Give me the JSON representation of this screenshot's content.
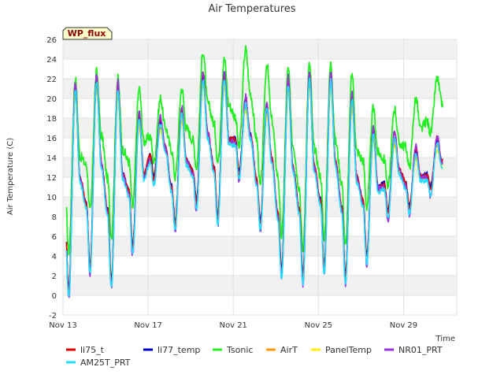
{
  "chart_data": {
    "type": "line",
    "title": "Air Temperatures",
    "xlabel": "Time",
    "ylabel": "Air Temperature (C)",
    "badge": "WP_flux",
    "ylim": [
      -2,
      26
    ],
    "yticks": [
      -2,
      0,
      2,
      4,
      6,
      8,
      10,
      12,
      14,
      16,
      18,
      20,
      22,
      24,
      26
    ],
    "x_range_days": [
      "2023-11-13",
      "2023-12-01"
    ],
    "xticks": [
      {
        "date": "2023-11-13",
        "label": "Nov 13"
      },
      {
        "date": "2023-11-17",
        "label": "Nov 17"
      },
      {
        "date": "2023-11-21",
        "label": "Nov 21"
      },
      {
        "date": "2023-11-25",
        "label": "Nov 25"
      },
      {
        "date": "2023-11-29",
        "label": "Nov 29"
      }
    ],
    "grid": true,
    "banded_background": true,
    "legend_position": "bottom",
    "series": [
      {
        "name": "li75_t",
        "color": "#dd0000"
      },
      {
        "name": "li77_temp",
        "color": "#0000cc"
      },
      {
        "name": "Tsonic",
        "color": "#22ee22"
      },
      {
        "name": "AirT",
        "color": "#ff9900"
      },
      {
        "name": "PanelTemp",
        "color": "#ffee00"
      },
      {
        "name": "NR01_PRT",
        "color": "#9933dd"
      },
      {
        "name": "AM25T_PRT",
        "color": "#22ddff"
      }
    ],
    "daily": [
      {
        "date": "2023-11-13",
        "min": 0.0,
        "max": 21.5,
        "tsonic_min": 4.5,
        "tsonic_max": 22.0
      },
      {
        "date": "2023-11-14",
        "min": 2.5,
        "max": 22.3,
        "tsonic_min": 8.5,
        "tsonic_max": 22.7
      },
      {
        "date": "2023-11-15",
        "min": 1.0,
        "max": 21.5,
        "tsonic_min": 6.0,
        "tsonic_max": 22.0
      },
      {
        "date": "2023-11-16",
        "min": 4.5,
        "max": 18.5,
        "tsonic_min": 9.0,
        "tsonic_max": 21.0
      },
      {
        "date": "2023-11-17",
        "min": 11.5,
        "max": 18.0,
        "tsonic_min": 13.5,
        "tsonic_max": 20.0
      },
      {
        "date": "2023-11-18",
        "min": 7.0,
        "max": 19.0,
        "tsonic_min": 12.0,
        "tsonic_max": 21.0
      },
      {
        "date": "2023-11-19",
        "min": 9.0,
        "max": 22.5,
        "tsonic_min": 13.0,
        "tsonic_max": 24.8
      },
      {
        "date": "2023-11-20",
        "min": 7.5,
        "max": 22.5,
        "tsonic_min": 13.5,
        "tsonic_max": 24.0
      },
      {
        "date": "2023-11-21",
        "min": 12.0,
        "max": 20.0,
        "tsonic_min": 15.0,
        "tsonic_max": 25.0
      },
      {
        "date": "2023-11-22",
        "min": 7.0,
        "max": 19.5,
        "tsonic_min": 11.0,
        "tsonic_max": 23.5
      },
      {
        "date": "2023-11-23",
        "min": 2.0,
        "max": 22.0,
        "tsonic_min": 6.0,
        "tsonic_max": 23.0
      },
      {
        "date": "2023-11-24",
        "min": 1.5,
        "max": 22.5,
        "tsonic_min": 4.5,
        "tsonic_max": 23.5
      },
      {
        "date": "2023-11-25",
        "min": 2.5,
        "max": 22.5,
        "tsonic_min": 6.0,
        "tsonic_max": 23.5
      },
      {
        "date": "2023-11-26",
        "min": 1.5,
        "max": 20.5,
        "tsonic_min": 5.0,
        "tsonic_max": 22.5
      },
      {
        "date": "2023-11-27",
        "min": 3.5,
        "max": 17.0,
        "tsonic_min": 9.0,
        "tsonic_max": 19.0
      },
      {
        "date": "2023-11-28",
        "min": 8.0,
        "max": 16.5,
        "tsonic_min": 11.0,
        "tsonic_max": 19.0
      },
      {
        "date": "2023-11-29",
        "min": 8.5,
        "max": 15.0,
        "tsonic_min": 13.0,
        "tsonic_max": 20.0
      },
      {
        "date": "2023-11-30",
        "min": 10.5,
        "max": 16.0,
        "tsonic_min": 16.5,
        "tsonic_max": 22.0
      }
    ]
  }
}
